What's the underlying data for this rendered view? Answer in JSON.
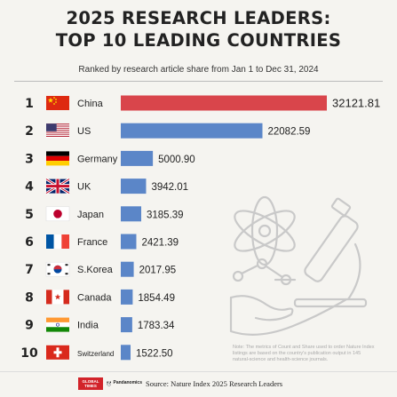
{
  "title_line1": "2025 RESEARCH LEADERS:",
  "title_line2": "TOP 10 LEADING COUNTRIES",
  "subtitle": "Ranked by research article share from Jan 1 to Dec 31, 2024",
  "note": "Note: The metrics of Count and Share used to order Nature Index listings are based on the country's publication output in 145 natural-science and health-science journals.",
  "source": "Source: Nature Index 2025 Research Leaders",
  "logos": {
    "gt": "GLOBAL TIMES",
    "gt_sub": "环球时报英文版",
    "pandanomics": "Pandanomics"
  },
  "colors": {
    "top_bar": "#d9454b",
    "bar": "#5b86c8"
  },
  "chart_data": {
    "type": "bar",
    "orientation": "horizontal",
    "title": "2025 RESEARCH LEADERS: TOP 10 LEADING COUNTRIES",
    "subtitle": "Ranked by research article share from Jan 1 to Dec 31, 2024",
    "categories": [
      "China",
      "US",
      "Germany",
      "UK",
      "Japan",
      "France",
      "S.Korea",
      "Canada",
      "India",
      "Switzerland"
    ],
    "ranks": [
      "1",
      "2",
      "3",
      "4",
      "5",
      "6",
      "7",
      "8",
      "9",
      "10"
    ],
    "values": [
      32121.81,
      22082.59,
      5000.9,
      3942.01,
      3185.39,
      2421.39,
      2017.95,
      1854.49,
      1783.34,
      1522.5
    ],
    "value_labels": [
      "32121.81",
      "22082.59",
      "5000.90",
      "3942.01",
      "3185.39",
      "2421.39",
      "2017.95",
      "1854.49",
      "1783.34",
      "1522.50"
    ],
    "flags": [
      "china-flag-icon",
      "us-flag-icon",
      "germany-flag-icon",
      "uk-flag-icon",
      "japan-flag-icon",
      "france-flag-icon",
      "south-korea-flag-icon",
      "canada-flag-icon",
      "india-flag-icon",
      "switzerland-flag-icon"
    ],
    "xlabel": "",
    "ylabel": "",
    "xlim": [
      0,
      32121.81
    ],
    "grid": false,
    "legend": "none"
  }
}
